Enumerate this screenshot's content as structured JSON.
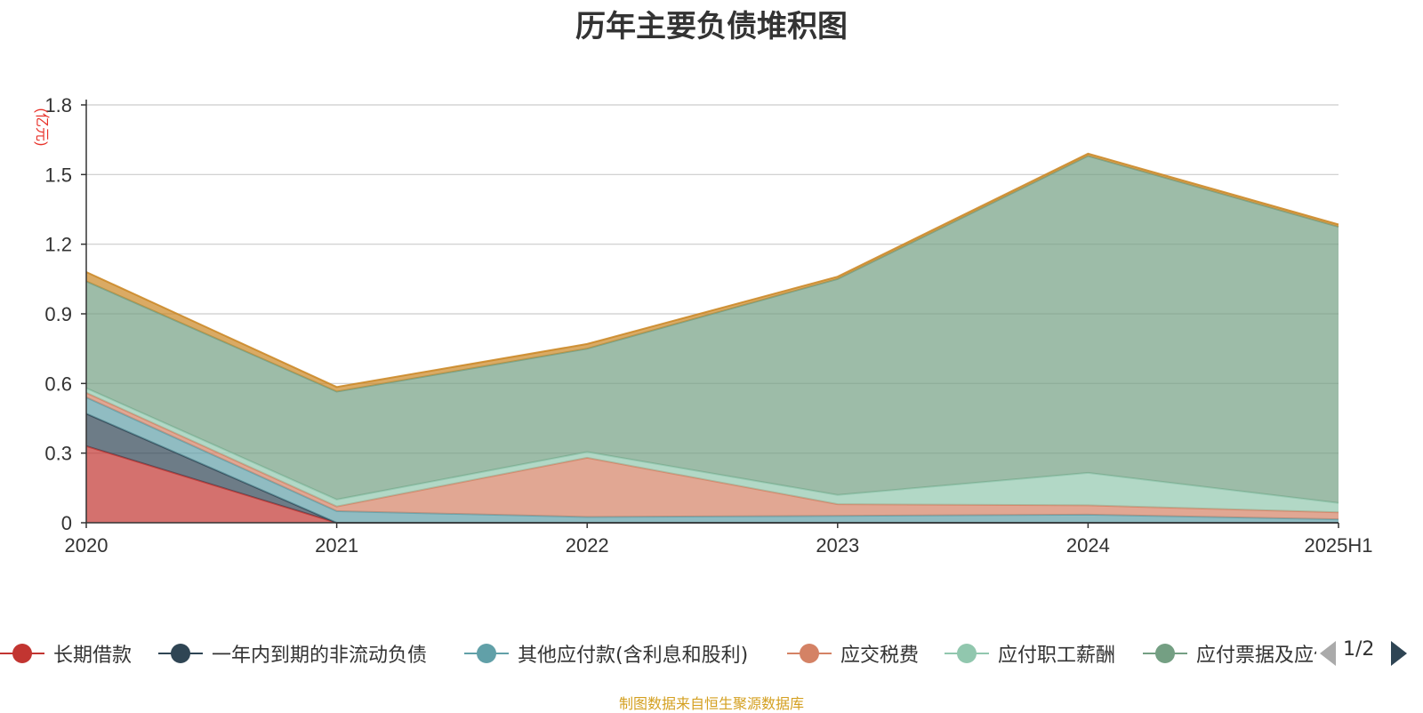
{
  "chart_data": {
    "type": "area",
    "stacked": true,
    "title": "历年主要负债堆积图",
    "ylabel": "(亿元)",
    "categories": [
      "2020",
      "2021",
      "2022",
      "2023",
      "2024",
      "2025H1"
    ],
    "ylim": [
      0,
      1.8
    ],
    "yticks": [
      "0",
      "0.3",
      "0.6",
      "0.9",
      "1.2",
      "1.5",
      "1.8"
    ],
    "grid": true,
    "series": [
      {
        "name": "长期借款",
        "color": "#c23531",
        "values": [
          0.33,
          0,
          0,
          0,
          0,
          0
        ]
      },
      {
        "name": "一年内到期的非流动负债",
        "color": "#2f4554",
        "values": [
          0.14,
          0,
          0,
          0,
          0,
          0
        ]
      },
      {
        "name": "其他应付款(含利息和股利)",
        "color": "#61a0a8",
        "values": [
          0.07,
          0.05,
          0.025,
          0.03,
          0.035,
          0.015
        ]
      },
      {
        "name": "应交税费",
        "color": "#d48265",
        "values": [
          0.02,
          0.02,
          0.255,
          0.05,
          0.04,
          0.03
        ]
      },
      {
        "name": "应付职工薪酬",
        "color": "#91c7ae",
        "values": [
          0.02,
          0.03,
          0.025,
          0.04,
          0.14,
          0.04
        ]
      },
      {
        "name": "应付票据及应付账款",
        "color": "#749f83",
        "values": [
          0.46,
          0.465,
          0.445,
          0.93,
          1.365,
          1.19
        ]
      },
      {
        "name": "",
        "color": "#ca8622",
        "values": [
          0.04,
          0.02,
          0.02,
          0.01,
          0.01,
          0.01
        ]
      }
    ]
  },
  "legend": {
    "visible_items": [
      "长期借款",
      "一年内到期的非流动负债",
      "其他应付款(含利息和股利)",
      "应交税费",
      "应付职工薪酬",
      "应付票据及应付账款"
    ],
    "page_indicator": "1/2"
  },
  "source_note": "制图数据来自恒生聚源数据库"
}
